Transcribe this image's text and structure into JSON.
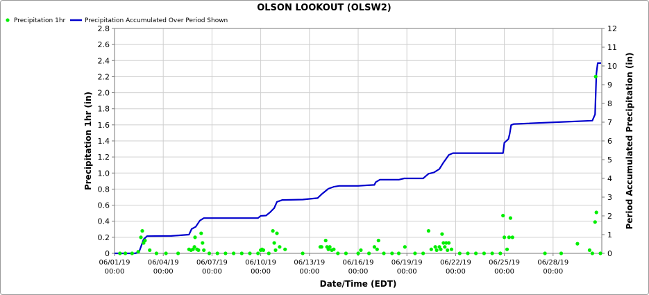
{
  "chart_data": {
    "type": "line",
    "title": "OLSON LOOKOUT (OLSW2)",
    "xlabel": "Date/Time (EDT)",
    "ylabel_left": "Precipitation 1hr (in)",
    "ylabel_right": "Period Accumulated Precipitation (in)",
    "ylim_left": [
      0,
      2.8
    ],
    "ylim_right": [
      0,
      12
    ],
    "xlim": [
      "2019-06-01 00:00",
      "2019-07-01 00:00"
    ],
    "grid": true,
    "legend_position": "top-left",
    "y_ticks_left": [
      "0",
      "0.2",
      "0.4",
      "0.6",
      "0.8",
      "1.0",
      "1.2",
      "1.4",
      "1.6",
      "1.8",
      "2.0",
      "2.2",
      "2.4",
      "2.6",
      "2.8"
    ],
    "y_ticks_right": [
      "0",
      "1",
      "2",
      "3",
      "4",
      "5",
      "6",
      "7",
      "8",
      "9",
      "10",
      "11",
      "12"
    ],
    "x_ticks": [
      {
        "date": "06/01/19",
        "time": "00:00"
      },
      {
        "date": "06/04/19",
        "time": "00:00"
      },
      {
        "date": "06/07/19",
        "time": "00:00"
      },
      {
        "date": "06/10/19",
        "time": "00:00"
      },
      {
        "date": "06/13/19",
        "time": "00:00"
      },
      {
        "date": "06/16/19",
        "time": "00:00"
      },
      {
        "date": "06/19/19",
        "time": "00:00"
      },
      {
        "date": "06/22/19",
        "time": "00:00"
      },
      {
        "date": "06/25/19",
        "time": "00:00"
      },
      {
        "date": "06/28/19",
        "time": "00:00"
      }
    ],
    "series": [
      {
        "name": "Precipitation 1hr",
        "kind": "scatter",
        "axis": "left",
        "color": "#00ee00",
        "points": [
          [
            "2019-06-01 08:00",
            0
          ],
          [
            "2019-06-01 16:00",
            0
          ],
          [
            "2019-06-02 02:00",
            0
          ],
          [
            "2019-06-02 11:00",
            0.02
          ],
          [
            "2019-06-02 15:00",
            0.2
          ],
          [
            "2019-06-02 17:00",
            0.28
          ],
          [
            "2019-06-02 19:00",
            0.13
          ],
          [
            "2019-06-02 21:00",
            0.16
          ],
          [
            "2019-06-03 04:00",
            0.04
          ],
          [
            "2019-06-03 14:00",
            0
          ],
          [
            "2019-06-04 04:00",
            0
          ],
          [
            "2019-06-04 22:00",
            0
          ],
          [
            "2019-06-05 14:00",
            0.05
          ],
          [
            "2019-06-05 17:00",
            0.04
          ],
          [
            "2019-06-05 20:00",
            0.05
          ],
          [
            "2019-06-05 22:00",
            0.08
          ],
          [
            "2019-06-05 23:00",
            0.2
          ],
          [
            "2019-06-06 02:00",
            0.05
          ],
          [
            "2019-06-06 04:00",
            0.04
          ],
          [
            "2019-06-06 08:00",
            0.25
          ],
          [
            "2019-06-06 10:00",
            0.13
          ],
          [
            "2019-06-06 12:00",
            0.04
          ],
          [
            "2019-06-06 20:00",
            0
          ],
          [
            "2019-06-07 08:00",
            0
          ],
          [
            "2019-06-07 20:00",
            0
          ],
          [
            "2019-06-08 08:00",
            0
          ],
          [
            "2019-06-08 20:00",
            0
          ],
          [
            "2019-06-09 08:00",
            0
          ],
          [
            "2019-06-09 20:00",
            0
          ],
          [
            "2019-06-10 00:00",
            0.04
          ],
          [
            "2019-06-10 02:00",
            0.05
          ],
          [
            "2019-06-10 04:00",
            0.04
          ],
          [
            "2019-06-10 12:00",
            0
          ],
          [
            "2019-06-10 18:00",
            0.28
          ],
          [
            "2019-06-10 20:00",
            0.13
          ],
          [
            "2019-06-10 22:00",
            0.04
          ],
          [
            "2019-06-11 00:00",
            0.25
          ],
          [
            "2019-06-11 04:00",
            0.08
          ],
          [
            "2019-06-11 12:00",
            0.05
          ],
          [
            "2019-06-12 14:00",
            0
          ],
          [
            "2019-06-13 16:00",
            0.08
          ],
          [
            "2019-06-13 18:00",
            0.08
          ],
          [
            "2019-06-14 00:00",
            0.16
          ],
          [
            "2019-06-14 02:00",
            0.08
          ],
          [
            "2019-06-14 04:00",
            0.05
          ],
          [
            "2019-06-14 06:00",
            0.08
          ],
          [
            "2019-06-14 09:00",
            0.04
          ],
          [
            "2019-06-14 12:00",
            0.05
          ],
          [
            "2019-06-14 18:00",
            0
          ],
          [
            "2019-06-15 06:00",
            0
          ],
          [
            "2019-06-16 00:00",
            0
          ],
          [
            "2019-06-16 04:00",
            0.04
          ],
          [
            "2019-06-16 16:00",
            0
          ],
          [
            "2019-06-17 00:00",
            0.08
          ],
          [
            "2019-06-17 04:00",
            0.05
          ],
          [
            "2019-06-17 06:00",
            0.16
          ],
          [
            "2019-06-17 14:00",
            0
          ],
          [
            "2019-06-18 02:00",
            0
          ],
          [
            "2019-06-18 12:00",
            0
          ],
          [
            "2019-06-18 21:00",
            0.08
          ],
          [
            "2019-06-19 12:00",
            0
          ],
          [
            "2019-06-20 00:00",
            0
          ],
          [
            "2019-06-20 08:00",
            0.28
          ],
          [
            "2019-06-20 12:00",
            0.05
          ],
          [
            "2019-06-20 18:00",
            0.08
          ],
          [
            "2019-06-20 20:00",
            0.04
          ],
          [
            "2019-06-21 00:00",
            0.08
          ],
          [
            "2019-06-21 02:00",
            0.05
          ],
          [
            "2019-06-21 04:00",
            0.24
          ],
          [
            "2019-06-21 06:00",
            0.13
          ],
          [
            "2019-06-21 08:00",
            0.08
          ],
          [
            "2019-06-21 10:00",
            0.13
          ],
          [
            "2019-06-21 12:00",
            0.04
          ],
          [
            "2019-06-21 14:00",
            0.13
          ],
          [
            "2019-06-21 18:00",
            0.05
          ],
          [
            "2019-06-22 06:00",
            0
          ],
          [
            "2019-06-22 18:00",
            0
          ],
          [
            "2019-06-23 06:00",
            0
          ],
          [
            "2019-06-23 18:00",
            0
          ],
          [
            "2019-06-24 06:00",
            0
          ],
          [
            "2019-06-24 18:00",
            0
          ],
          [
            "2019-06-24 22:00",
            0.47
          ],
          [
            "2019-06-25 00:00",
            0.2
          ],
          [
            "2019-06-25 04:00",
            0.05
          ],
          [
            "2019-06-25 07:00",
            0.2
          ],
          [
            "2019-06-25 09:00",
            0.44
          ],
          [
            "2019-06-25 12:00",
            0.2
          ],
          [
            "2019-06-27 12:00",
            0
          ],
          [
            "2019-06-28 12:00",
            0
          ],
          [
            "2019-06-29 12:00",
            0.12
          ],
          [
            "2019-06-30 06:00",
            0.04
          ],
          [
            "2019-06-30 10:00",
            0
          ],
          [
            "2019-06-30 14:00",
            0.39
          ],
          [
            "2019-06-30 15:00",
            2.2
          ],
          [
            "2019-06-30 16:00",
            0.51
          ],
          [
            "2019-06-30 22:00",
            0
          ]
        ]
      },
      {
        "name": "Precipitation Accumulated Over Period Shown",
        "kind": "line",
        "axis": "right",
        "color": "#0000cc",
        "points": [
          [
            "2019-06-01 00:00",
            0
          ],
          [
            "2019-06-02 06:00",
            0
          ],
          [
            "2019-06-02 12:00",
            0.05
          ],
          [
            "2019-06-02 16:00",
            0.45
          ],
          [
            "2019-06-02 19:00",
            0.75
          ],
          [
            "2019-06-03 00:00",
            0.92
          ],
          [
            "2019-06-04 12:00",
            0.93
          ],
          [
            "2019-06-05 14:00",
            1.0
          ],
          [
            "2019-06-05 18:00",
            1.3
          ],
          [
            "2019-06-06 00:00",
            1.42
          ],
          [
            "2019-06-06 06:00",
            1.75
          ],
          [
            "2019-06-06 12:00",
            1.88
          ],
          [
            "2019-06-09 20:00",
            1.88
          ],
          [
            "2019-06-10 00:00",
            2.0
          ],
          [
            "2019-06-10 08:00",
            2.02
          ],
          [
            "2019-06-10 14:00",
            2.2
          ],
          [
            "2019-06-10 20:00",
            2.42
          ],
          [
            "2019-06-11 00:00",
            2.75
          ],
          [
            "2019-06-11 08:00",
            2.85
          ],
          [
            "2019-06-12 14:00",
            2.87
          ],
          [
            "2019-06-13 12:00",
            2.95
          ],
          [
            "2019-06-13 18:00",
            3.15
          ],
          [
            "2019-06-14 04:00",
            3.45
          ],
          [
            "2019-06-14 12:00",
            3.55
          ],
          [
            "2019-06-14 20:00",
            3.6
          ],
          [
            "2019-06-16 00:00",
            3.6
          ],
          [
            "2019-06-16 12:00",
            3.63
          ],
          [
            "2019-06-17 00:00",
            3.65
          ],
          [
            "2019-06-17 02:00",
            3.8
          ],
          [
            "2019-06-17 08:00",
            3.93
          ],
          [
            "2019-06-18 12:00",
            3.93
          ],
          [
            "2019-06-18 20:00",
            4.0
          ],
          [
            "2019-06-20 00:00",
            4.0
          ],
          [
            "2019-06-20 08:00",
            4.25
          ],
          [
            "2019-06-20 16:00",
            4.32
          ],
          [
            "2019-06-21 00:00",
            4.5
          ],
          [
            "2019-06-21 06:00",
            4.85
          ],
          [
            "2019-06-21 14:00",
            5.25
          ],
          [
            "2019-06-21 20:00",
            5.35
          ],
          [
            "2019-06-24 22:00",
            5.35
          ],
          [
            "2019-06-25 00:00",
            5.9
          ],
          [
            "2019-06-25 06:00",
            6.1
          ],
          [
            "2019-06-25 08:00",
            6.4
          ],
          [
            "2019-06-25 10:00",
            6.85
          ],
          [
            "2019-06-25 14:00",
            6.9
          ],
          [
            "2019-06-30 10:00",
            7.08
          ],
          [
            "2019-06-30 14:00",
            7.42
          ],
          [
            "2019-06-30 16:00",
            9.6
          ],
          [
            "2019-06-30 18:00",
            10.15
          ],
          [
            "2019-06-30 23:00",
            10.15
          ]
        ]
      }
    ]
  }
}
